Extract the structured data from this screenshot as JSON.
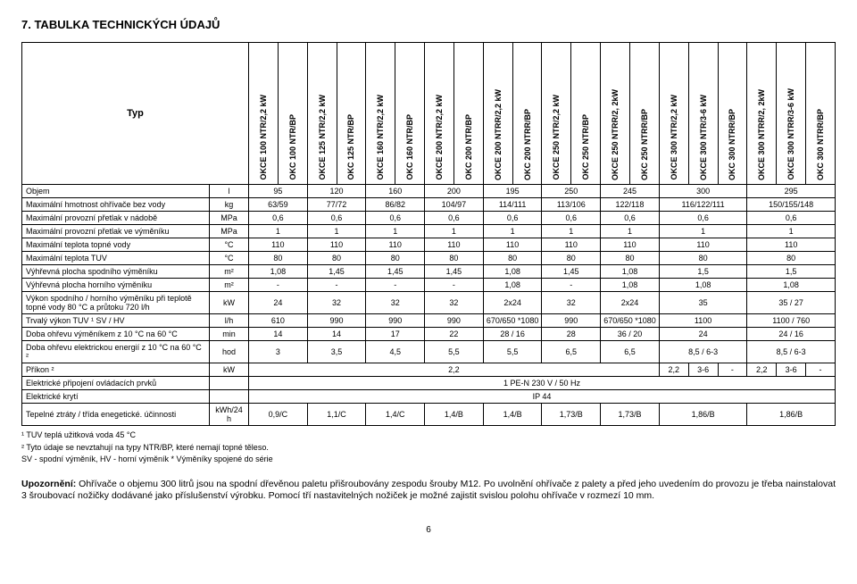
{
  "title": "7.   TABULKA TECHNICKÝCH ÚDAJŮ",
  "typ_label": "Typ",
  "column_headers": [
    "OKCE 100 NTR/2,2 kW",
    "OKC 100 NTR/BP",
    "OKCE 125 NTR/2,2 kW",
    "OKC 125 NTR/BP",
    "OKCE 160 NTR/2,2 kW",
    "OKC 160 NTR/BP",
    "OKCE 200 NTR/2,2 kW",
    "OKC 200 NTR/BP",
    "OKCE 200 NTRR/2,2 kW",
    "OKC 200 NTRR/BP",
    "OKCE 250 NTR/2,2 kW",
    "OKC 250 NTR/BP",
    "OKCE 250 NTRR/2, 2kW",
    "OKC 250 NTRR/BP",
    "OKCE 300 NTR/2,2 kW",
    "OKCE 300 NTR/3-6 kW",
    "OKC 300 NTRR/BP",
    "OKCE 300 NTRR/2, 2kW",
    "OKCE 300 NTRR/3-6 kW",
    "OKC 300 NTRR/BP"
  ],
  "group_a": [
    2,
    2,
    2,
    2,
    2,
    2,
    2,
    3,
    3
  ],
  "group_b": [
    2,
    2,
    2,
    2,
    2,
    2,
    2,
    2,
    2,
    2
  ],
  "rows_a": [
    {
      "label": "Objem",
      "unit": "l",
      "cells": [
        "95",
        "120",
        "160",
        "200",
        "195",
        "250",
        "245",
        "300",
        "295"
      ]
    },
    {
      "label": "Maximální hmotnost ohřívače bez vody",
      "unit": "kg",
      "cells": [
        "63/59",
        "77/72",
        "86/82",
        "104/97",
        "114/111",
        "113/106",
        "122/118",
        "116/122/111",
        "150/155/148"
      ]
    },
    {
      "label": "Maximální provozní přetlak v nádobě",
      "unit": "MPa",
      "cells": [
        "0,6",
        "0,6",
        "0,6",
        "0,6",
        "0,6",
        "0,6",
        "0,6",
        "0,6",
        "0,6"
      ]
    },
    {
      "label": "Maximální provozní přetlak ve výměníku",
      "unit": "MPa",
      "cells": [
        "1",
        "1",
        "1",
        "1",
        "1",
        "1",
        "1",
        "1",
        "1"
      ]
    },
    {
      "label": "Maximální teplota topné vody",
      "unit": "°C",
      "cells": [
        "110",
        "110",
        "110",
        "110",
        "110",
        "110",
        "110",
        "110",
        "110"
      ]
    },
    {
      "label": "Maximální teplota TUV",
      "unit": "°C",
      "cells": [
        "80",
        "80",
        "80",
        "80",
        "80",
        "80",
        "80",
        "80",
        "80"
      ]
    },
    {
      "label": "Výhřevná plocha spodního výměníku",
      "unit": "m²",
      "cells": [
        "1,08",
        "1,45",
        "1,45",
        "1,45",
        "1,08",
        "1,45",
        "1,08",
        "1,5",
        "1,5"
      ]
    },
    {
      "label": "Výhřevná plocha horního výměníku",
      "unit": "m²",
      "cells": [
        "-",
        "-",
        "-",
        "-",
        "1,08",
        "-",
        "1,08",
        "1,08",
        "1,08"
      ]
    },
    {
      "label": "Výkon spodního / horního výměníku při teplotě topné vody 80 °C a průtoku 720 l/h",
      "unit": "kW",
      "cells": [
        "24",
        "32",
        "32",
        "32",
        "2x24",
        "32",
        "2x24",
        "35",
        "35 / 27"
      ]
    },
    {
      "label": "Trvalý výkon TUV ¹ SV / HV",
      "unit": "l/h",
      "cells": [
        "610",
        "990",
        "990",
        "990",
        "670/650 *1080",
        "990",
        "670/650 *1080",
        "1100",
        "1100 / 760"
      ]
    },
    {
      "label": "Doba ohřevu výměníkem z 10 °C na 60 °C",
      "unit": "min",
      "cells": [
        "14",
        "14",
        "17",
        "22",
        "28 / 16",
        "28",
        "36 / 20",
        "24",
        "24 / 16"
      ]
    },
    {
      "label": "Doba ohřevu elektrickou energií z 10 °C na 60 °C ²",
      "unit": "hod",
      "cells": [
        "3",
        "3,5",
        "4,5",
        "5,5",
        "5,5",
        "6,5",
        "6,5",
        "8,5 / 6-3",
        "8,5 / 6-3"
      ]
    }
  ],
  "rows_b": [
    {
      "label": "Příkon ²",
      "unit": "kW",
      "cells": [
        "2,2",
        "",
        "",
        "",
        "",
        "",
        "",
        "2,2",
        "3-6",
        "-",
        "2,2",
        "3-6",
        "-"
      ],
      "spanfirst": 7
    }
  ],
  "rows_full": [
    {
      "label": "Elektrické připojení ovládacích prvků",
      "unit": "",
      "value": "1 PE-N 230 V / 50 Hz"
    },
    {
      "label": "Elektrické krytí",
      "unit": "",
      "value": "IP 44"
    }
  ],
  "row_last": {
    "label": "Tepelné ztráty / třída enegetické. účinnosti",
    "unit": "kWh/24 h",
    "cells": [
      "0,9/C",
      "1,1/C",
      "1,4/C",
      "1,4/B",
      "1,4/B",
      "1,73/B",
      "1,73/B",
      "1,86/B",
      "1,86/B"
    ]
  },
  "footnotes": [
    "¹ TUV teplá užitková voda 45 °C",
    "² Tyto údaje se nevztahují na typy NTR/BP, které nemají topné těleso.",
    "SV - spodní výměník, HV - horní výměník     * Výměníky spojené do série"
  ],
  "body_text": "Upozornění: Ohřívače o objemu 300 litrů jsou na spodní dřevěnou paletu přišroubovány zespodu šrouby M12. Po uvolnění ohřívače z palety a před jeho uvedením do provozu je třeba nainstalovat 3 šroubovací nožičky dodávané jako příslušenství výrobku. Pomocí tří nastavitelných nožiček je možné zajistit svislou polohu ohřívače v rozmezí 10 mm.",
  "page_number": "6"
}
